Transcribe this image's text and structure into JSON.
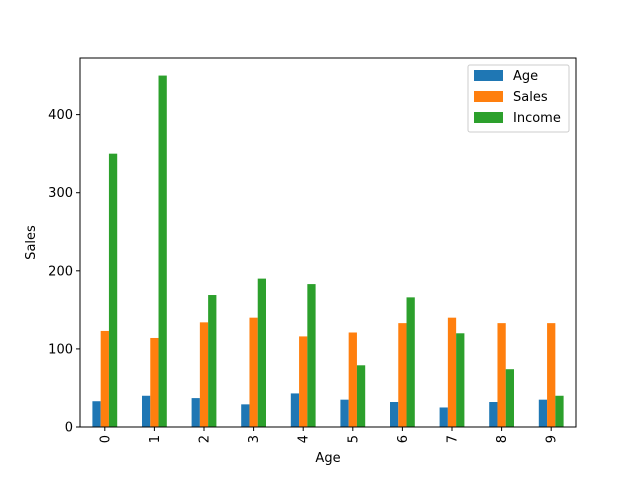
{
  "chart_data": {
    "type": "bar",
    "categories": [
      "0",
      "1",
      "2",
      "3",
      "4",
      "5",
      "6",
      "7",
      "8",
      "9"
    ],
    "series": [
      {
        "name": "Age",
        "color": "#1f77b4",
        "values": [
          33,
          40,
          37,
          29,
          43,
          35,
          32,
          25,
          32,
          35
        ]
      },
      {
        "name": "Sales",
        "color": "#ff7f0e",
        "values": [
          123,
          114,
          134,
          140,
          116,
          121,
          133,
          140,
          133,
          133
        ]
      },
      {
        "name": "Income",
        "color": "#2ca02c",
        "values": [
          350,
          450,
          169,
          190,
          183,
          79,
          166,
          120,
          74,
          40
        ]
      }
    ],
    "xlabel": "Age",
    "ylabel": "Sales",
    "ylim": [
      0,
      472.5
    ],
    "yticks": [
      0,
      100,
      200,
      300,
      400
    ],
    "legend_position": "top-right",
    "grid": false
  }
}
